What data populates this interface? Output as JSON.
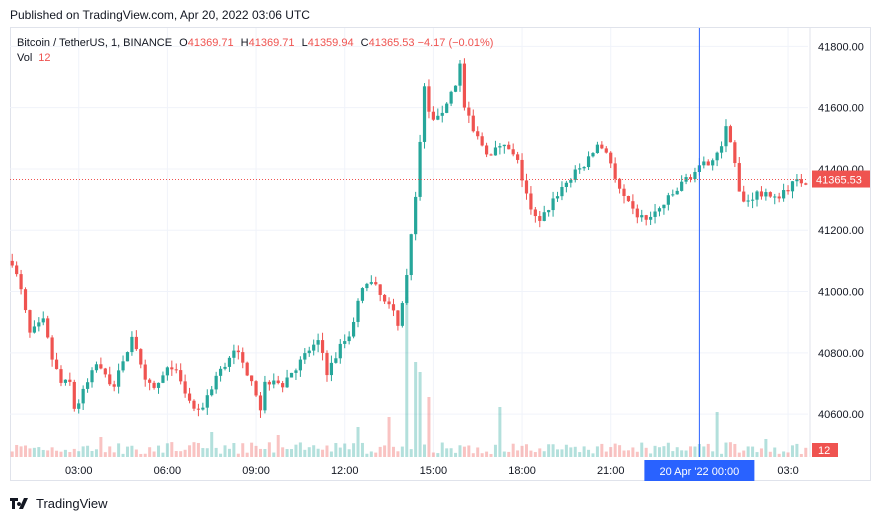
{
  "header": {
    "published": "Published on TradingView.com, Apr 20, 2022 03:06 UTC"
  },
  "legend": {
    "symbol": "Bitcoin / TetherUS, 1, BINANCE",
    "o_label": "O",
    "o_value": "41369.71",
    "h_label": "H",
    "h_value": "41369.71",
    "l_label": "L",
    "l_value": "41359.94",
    "c_label": "C",
    "c_value": "41365.53",
    "change": "−4.17 (−0.01%)",
    "vol_label": "Vol",
    "vol_value": "12"
  },
  "footer": {
    "brand": "TradingView"
  },
  "colors": {
    "up": "#26a69a",
    "down": "#ef5350",
    "grid": "#f0f3fa",
    "crosshair": "#2962ff",
    "label_bg": "#2962ff"
  },
  "chart_data": {
    "type": "candlestick",
    "timeframe": "1 minute",
    "y_ticks": [
      "41800.00",
      "41600.00",
      "41400.00",
      "41200.00",
      "41000.00",
      "40800.00",
      "40600.00"
    ],
    "x_ticks": [
      "03:00",
      "06:00",
      "09:00",
      "12:00",
      "15:00",
      "18:00",
      "21:00",
      "03:0"
    ],
    "ylim": [
      40460,
      41860
    ],
    "current_price": 41365.53,
    "current_price_label": "41365.53",
    "volume_label": "12",
    "crosshair_label": "20 Apr '22   00:00",
    "close_path": [
      [
        0,
        41100
      ],
      [
        2,
        41000
      ],
      [
        4,
        40860
      ],
      [
        7,
        40900
      ],
      [
        9,
        40780
      ],
      [
        11,
        40700
      ],
      [
        13,
        40700
      ],
      [
        14,
        40620
      ],
      [
        15,
        40640
      ],
      [
        17,
        40700
      ],
      [
        19,
        40760
      ],
      [
        21,
        40720
      ],
      [
        23,
        40700
      ],
      [
        25,
        40760
      ],
      [
        27,
        40860
      ],
      [
        28,
        40820
      ],
      [
        29,
        40750
      ],
      [
        30,
        40700
      ],
      [
        32,
        40680
      ],
      [
        34,
        40720
      ],
      [
        36,
        40760
      ],
      [
        38,
        40700
      ],
      [
        40,
        40640
      ],
      [
        42,
        40600
      ],
      [
        44,
        40660
      ],
      [
        46,
        40720
      ],
      [
        48,
        40760
      ],
      [
        50,
        40820
      ],
      [
        52,
        40760
      ],
      [
        54,
        40720
      ],
      [
        55,
        40670
      ],
      [
        56,
        40620
      ],
      [
        57,
        40700
      ],
      [
        59,
        40720
      ],
      [
        61,
        40700
      ],
      [
        63,
        40740
      ],
      [
        65,
        40770
      ],
      [
        67,
        40810
      ],
      [
        69,
        40830
      ],
      [
        70,
        40800
      ],
      [
        71,
        40740
      ],
      [
        72,
        40760
      ],
      [
        74,
        40820
      ],
      [
        76,
        40860
      ],
      [
        78,
        40960
      ],
      [
        80,
        41040
      ],
      [
        82,
        41010
      ],
      [
        84,
        40960
      ],
      [
        86,
        40930
      ],
      [
        87,
        40900
      ],
      [
        88,
        40960
      ],
      [
        89,
        41050
      ],
      [
        91,
        41300
      ],
      [
        92,
        41500
      ],
      [
        93,
        41660
      ],
      [
        94,
        41580
      ],
      [
        96,
        41560
      ],
      [
        98,
        41620
      ],
      [
        100,
        41680
      ],
      [
        101,
        41740
      ],
      [
        102,
        41600
      ],
      [
        104,
        41520
      ],
      [
        106,
        41480
      ],
      [
        108,
        41440
      ],
      [
        110,
        41480
      ],
      [
        112,
        41460
      ],
      [
        114,
        41420
      ],
      [
        115,
        41370
      ],
      [
        116,
        41320
      ],
      [
        117,
        41260
      ],
      [
        118,
        41240
      ],
      [
        119,
        41220
      ],
      [
        120,
        41250
      ],
      [
        122,
        41300
      ],
      [
        124,
        41340
      ],
      [
        126,
        41370
      ],
      [
        128,
        41400
      ],
      [
        130,
        41430
      ],
      [
        132,
        41480
      ],
      [
        134,
        41460
      ],
      [
        135,
        41420
      ],
      [
        136,
        41360
      ],
      [
        138,
        41300
      ],
      [
        140,
        41260
      ],
      [
        142,
        41240
      ],
      [
        144,
        41240
      ],
      [
        146,
        41270
      ],
      [
        148,
        41300
      ],
      [
        150,
        41330
      ],
      [
        152,
        41370
      ],
      [
        154,
        41390
      ],
      [
        156,
        41410
      ],
      [
        158,
        41440
      ],
      [
        160,
        41480
      ],
      [
        161,
        41530
      ],
      [
        162,
        41500
      ],
      [
        163,
        41420
      ],
      [
        164,
        41320
      ],
      [
        165,
        41290
      ],
      [
        166,
        41300
      ],
      [
        168,
        41320
      ],
      [
        170,
        41310
      ],
      [
        172,
        41300
      ],
      [
        174,
        41330
      ],
      [
        176,
        41350
      ],
      [
        178,
        41360
      ],
      [
        180,
        41360
      ]
    ],
    "volume_spikes": [
      [
        89,
        160
      ],
      [
        91,
        95
      ],
      [
        92,
        85
      ],
      [
        94,
        60
      ],
      [
        78,
        30
      ],
      [
        85,
        40
      ],
      [
        110,
        50
      ],
      [
        159,
        45
      ],
      [
        20,
        20
      ],
      [
        45,
        25
      ],
      [
        60,
        22
      ],
      [
        170,
        18
      ]
    ]
  }
}
